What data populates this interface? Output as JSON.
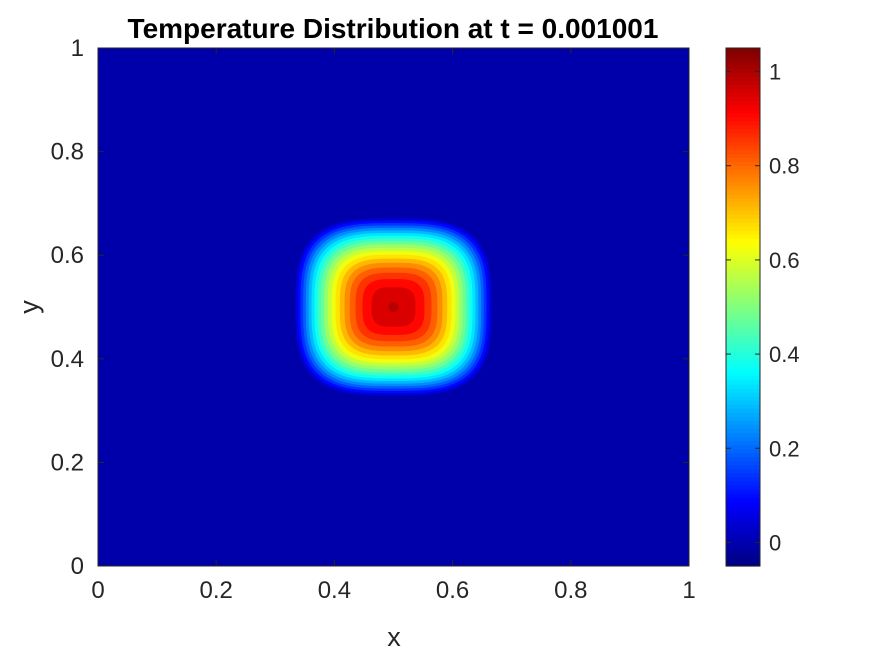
{
  "chart_data": {
    "type": "heatmap",
    "title": "Temperature Distribution at t = 0.001001",
    "xlabel": "x",
    "ylabel": "y",
    "xlim": [
      0,
      1
    ],
    "ylim": [
      0,
      1
    ],
    "x_ticks": [
      "0",
      "0.2",
      "0.4",
      "0.6",
      "0.8",
      "1"
    ],
    "y_ticks": [
      "0",
      "0.2",
      "0.4",
      "0.6",
      "0.8",
      "1"
    ],
    "grid": false,
    "colormap": "jet",
    "colorbar": {
      "position": "right",
      "range": [
        -0.05,
        1.05
      ],
      "ticks": [
        "0",
        "0.2",
        "0.4",
        "0.6",
        "0.8",
        "1"
      ]
    },
    "field": {
      "description": "Square-shaped hot spot centered at (0.5, 0.5) on a zero background",
      "center": [
        0.5,
        0.5
      ],
      "peak_value": 1.0,
      "background_value": 0.0,
      "half_width_at_background": 0.17,
      "contour_levels": 20
    }
  }
}
